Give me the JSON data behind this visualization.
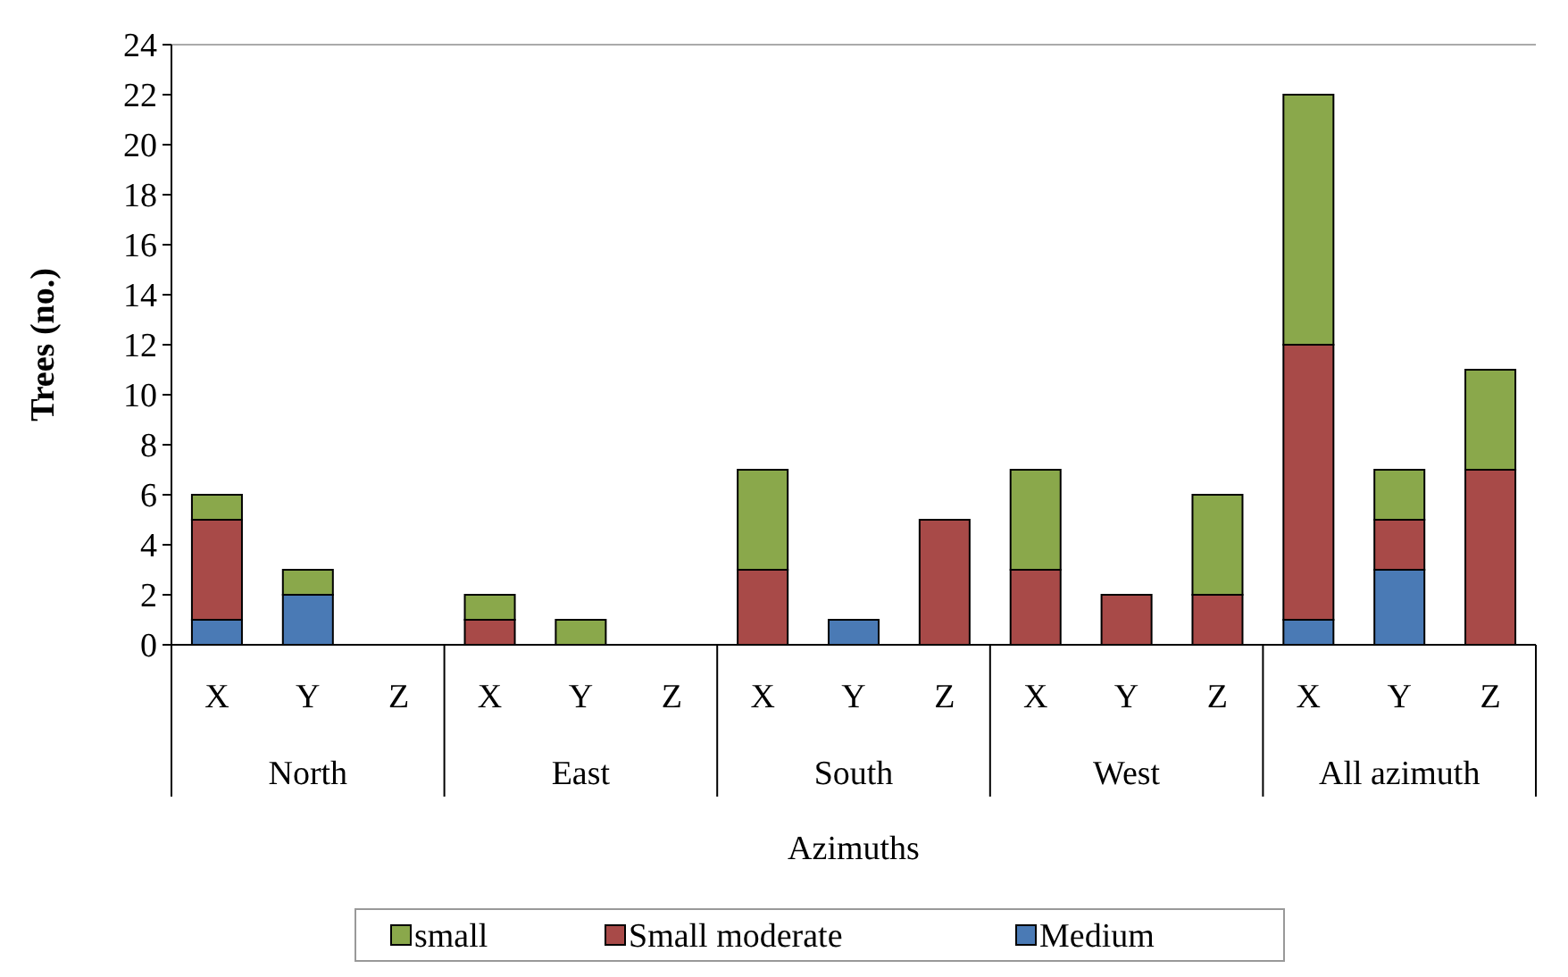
{
  "chart_data": {
    "type": "bar",
    "stacked": true,
    "xlabel": "Azimuths",
    "ylabel": "Trees (no.)",
    "categories": [
      "X",
      "Y",
      "Z",
      "X",
      "Y",
      "Z",
      "X",
      "Y",
      "Z",
      "X",
      "Y",
      "Z",
      "X",
      "Y",
      "Z"
    ],
    "annotations": [
      "North",
      "East",
      "South",
      "West",
      "All azimuth"
    ],
    "series": [
      {
        "name": "Medium",
        "color": "#4a7ab5",
        "values": [
          1,
          2,
          0,
          0,
          0,
          0,
          0,
          1,
          0,
          0,
          0,
          0,
          1,
          3,
          0
        ]
      },
      {
        "name": "Small moderate",
        "color": "#a84a48",
        "values": [
          4,
          0,
          0,
          1,
          0,
          0,
          3,
          0,
          5,
          3,
          2,
          2,
          11,
          2,
          7
        ]
      },
      {
        "name": "small",
        "color": "#8aa84b",
        "values": [
          1,
          1,
          0,
          1,
          1,
          0,
          4,
          0,
          0,
          4,
          0,
          4,
          10,
          2,
          4
        ]
      }
    ],
    "ylim": [
      0,
      24
    ],
    "yticks": [
      0,
      2,
      4,
      6,
      8,
      10,
      12,
      14,
      16,
      18,
      20,
      22,
      24
    ],
    "grid": false,
    "legend": "bottom"
  }
}
